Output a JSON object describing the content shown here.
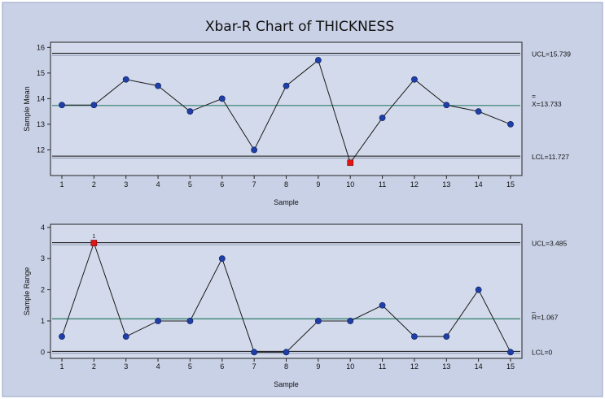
{
  "title": "Xbar-R Chart of THICKNESS",
  "colors": {
    "outer_bg": "#c9d1e6",
    "inner_bg": "#d3daeb",
    "limit_line": "#111111",
    "center_line": "#2e7d6a",
    "point": "#1f3fa8",
    "flag": "#e01616"
  },
  "chart_data": [
    {
      "type": "line",
      "name": "xbar",
      "xlabel": "Sample",
      "ylabel": "Sample Mean",
      "x": [
        1,
        2,
        3,
        4,
        5,
        6,
        7,
        8,
        9,
        10,
        11,
        12,
        13,
        14,
        15
      ],
      "values": [
        13.75,
        13.75,
        14.75,
        14.5,
        13.5,
        14.0,
        12.0,
        14.5,
        15.5,
        11.5,
        13.25,
        14.75,
        13.75,
        13.5,
        13.0
      ],
      "flagged_points": [
        10
      ],
      "ylim": [
        11.0,
        16.2
      ],
      "yticks": [
        12,
        13,
        14,
        15,
        16
      ],
      "limits": {
        "ucl": {
          "value": 15.739,
          "label": "UCL=15.739"
        },
        "center": {
          "value": 13.733,
          "label_bar": "=",
          "label": "X=13.733"
        },
        "lcl": {
          "value": 11.727,
          "label": "LCL=11.727"
        }
      }
    },
    {
      "type": "line",
      "name": "range",
      "xlabel": "Sample",
      "ylabel": "Sample Range",
      "x": [
        1,
        2,
        3,
        4,
        5,
        6,
        7,
        8,
        9,
        10,
        11,
        12,
        13,
        14,
        15
      ],
      "values": [
        0.5,
        3.5,
        0.5,
        1.0,
        1.0,
        3.0,
        0.0,
        0.0,
        1.0,
        1.0,
        1.5,
        0.5,
        0.5,
        2.0,
        0.0
      ],
      "flagged_points": [
        2
      ],
      "flag_text": "1",
      "ylim": [
        -0.2,
        4.1
      ],
      "yticks": [
        0,
        1,
        2,
        3,
        4
      ],
      "limits": {
        "ucl": {
          "value": 3.485,
          "label": "UCL=3.485"
        },
        "center": {
          "value": 1.067,
          "label_bar": "_",
          "label": "R=1.067"
        },
        "lcl": {
          "value": 0,
          "label": "LCL=0"
        }
      }
    }
  ]
}
